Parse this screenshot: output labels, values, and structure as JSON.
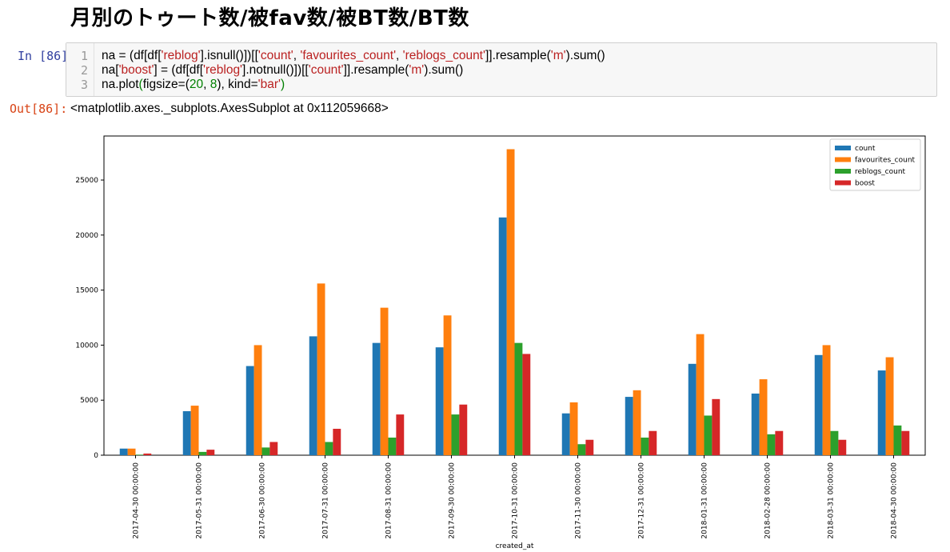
{
  "heading": "月別のトゥート数/被fav数/被BT数/BT数",
  "input_prompt": "In [86]:",
  "output_prompt": "Out[86]:",
  "code_lines": [
    {
      "num": "1",
      "segments": [
        {
          "t": "na = (df[df[",
          "c": ""
        },
        {
          "t": "'reblog'",
          "c": "str"
        },
        {
          "t": "].isnull()])[[",
          "c": ""
        },
        {
          "t": "'count'",
          "c": "str"
        },
        {
          "t": ", ",
          "c": ""
        },
        {
          "t": "'favourites_count'",
          "c": "str"
        },
        {
          "t": ", ",
          "c": ""
        },
        {
          "t": "'reblogs_count'",
          "c": "str"
        },
        {
          "t": "]].resample(",
          "c": ""
        },
        {
          "t": "'m'",
          "c": "str"
        },
        {
          "t": ").sum()",
          "c": ""
        }
      ]
    },
    {
      "num": "2",
      "segments": [
        {
          "t": "na[",
          "c": ""
        },
        {
          "t": "'boost'",
          "c": "str"
        },
        {
          "t": "] = (df[df[",
          "c": ""
        },
        {
          "t": "'reblog'",
          "c": "str"
        },
        {
          "t": "].notnull()])[[",
          "c": ""
        },
        {
          "t": "'count'",
          "c": "str"
        },
        {
          "t": "]].resample(",
          "c": ""
        },
        {
          "t": "'m'",
          "c": "str"
        },
        {
          "t": ").sum()",
          "c": ""
        }
      ]
    },
    {
      "num": "3",
      "segments": [
        {
          "t": "na.plot",
          "c": ""
        },
        {
          "t": "(",
          "c": "paren"
        },
        {
          "t": "figsize=(",
          "c": ""
        },
        {
          "t": "20",
          "c": "num"
        },
        {
          "t": ", ",
          "c": ""
        },
        {
          "t": "8",
          "c": "num"
        },
        {
          "t": "), kind=",
          "c": ""
        },
        {
          "t": "'bar'",
          "c": "str"
        },
        {
          "t": ")",
          "c": "paren"
        }
      ]
    }
  ],
  "output_text": "<matplotlib.axes._subplots.AxesSubplot at 0x112059668>",
  "chart_data": {
    "type": "bar",
    "xlabel": "created_at",
    "ylabel": "",
    "ylim": [
      0,
      29000
    ],
    "yticks": [
      0,
      5000,
      10000,
      15000,
      20000,
      25000
    ],
    "grid": false,
    "legend_position": "top-right",
    "categories": [
      "2017-04-30 00:00:00",
      "2017-05-31 00:00:00",
      "2017-06-30 00:00:00",
      "2017-07-31 00:00:00",
      "2017-08-31 00:00:00",
      "2017-09-30 00:00:00",
      "2017-10-31 00:00:00",
      "2017-11-30 00:00:00",
      "2017-12-31 00:00:00",
      "2018-01-31 00:00:00",
      "2018-02-28 00:00:00",
      "2018-03-31 00:00:00",
      "2018-04-30 00:00:00"
    ],
    "series": [
      {
        "name": "count",
        "color": "#1f77b4",
        "values": [
          600,
          4000,
          8100,
          10800,
          10200,
          9800,
          21600,
          3800,
          5300,
          8300,
          5600,
          9100,
          7700
        ]
      },
      {
        "name": "favourites_count",
        "color": "#ff7f0e",
        "values": [
          600,
          4500,
          10000,
          15600,
          13400,
          12700,
          27800,
          4800,
          5900,
          11000,
          6900,
          10000,
          8900
        ]
      },
      {
        "name": "reblogs_count",
        "color": "#2ca02c",
        "values": [
          50,
          300,
          700,
          1200,
          1600,
          3700,
          10200,
          1000,
          1600,
          3600,
          1900,
          2200,
          2700
        ]
      },
      {
        "name": "boost",
        "color": "#d62728",
        "values": [
          150,
          500,
          1200,
          2400,
          3700,
          4600,
          9200,
          1400,
          2200,
          5100,
          2200,
          1400,
          2200
        ]
      }
    ]
  }
}
